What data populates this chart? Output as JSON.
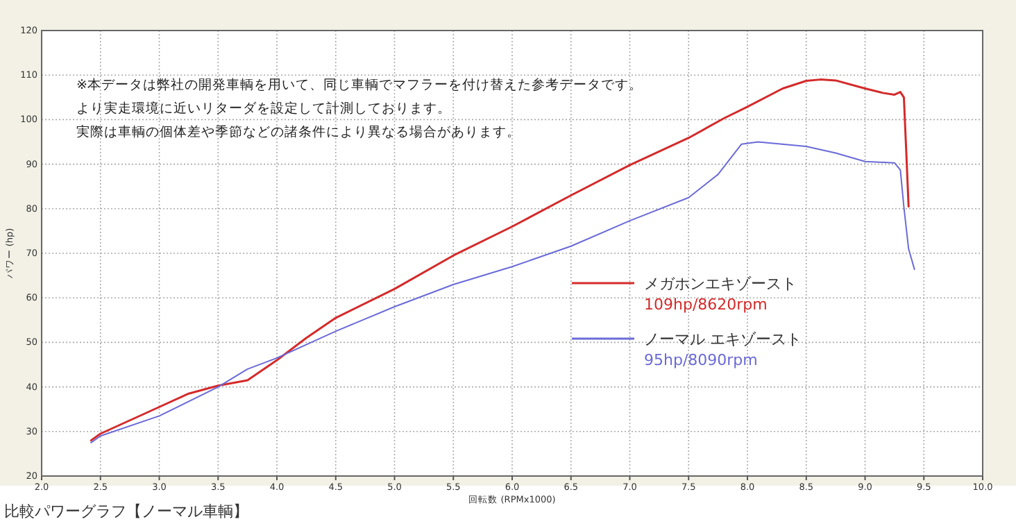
{
  "chart_data": {
    "type": "line",
    "xlabel": "回転数 (RPMx1000)",
    "ylabel": "パワー (hp)",
    "annotations": [
      "※本データは弊社の開発車輌を用いて、同じ車輌でマフラーを付け替えた参考データです。",
      "より実走環境に近いリターダを設定して計測しております。",
      "実際は車輌の個体差や季節などの諸条件により異なる場合があります。",
      "109hp/8620rpm",
      "95hp/8090rpm",
      "比較パワーグラフ【ノーマル車輌】"
    ],
    "series": [
      {
        "name": "メガホンエキゾースト",
        "color": "#d42a2a",
        "x": [
          2.42,
          2.5,
          3.0,
          3.25,
          3.5,
          3.75,
          4.0,
          4.25,
          4.5,
          5.0,
          5.5,
          6.0,
          6.5,
          7.0,
          7.5,
          7.8,
          8.0,
          8.3,
          8.5,
          8.62,
          8.75,
          9.0,
          9.15,
          9.25,
          9.3,
          9.33,
          9.35,
          9.37
        ],
        "values": [
          28.0,
          29.5,
          35.5,
          38.5,
          40.3,
          41.5,
          46,
          51,
          55.5,
          62,
          69.5,
          76,
          83,
          89.8,
          95.9,
          100.3,
          102.9,
          107,
          108.7,
          109,
          108.8,
          107,
          106,
          105.6,
          106.2,
          105,
          93,
          80.5
        ]
      },
      {
        "name": "ノーマル エキゾースト",
        "color": "#6a6ad8",
        "x": [
          2.42,
          2.5,
          3.0,
          3.5,
          3.75,
          4.0,
          4.25,
          4.5,
          5.0,
          5.5,
          6.0,
          6.5,
          7.0,
          7.5,
          7.75,
          7.95,
          8.09,
          8.5,
          8.75,
          9.0,
          9.25,
          9.3,
          9.33,
          9.37,
          9.42
        ],
        "values": [
          27.5,
          29,
          33.5,
          40,
          44,
          46.5,
          49.5,
          52.5,
          58,
          63,
          67,
          71.6,
          77.3,
          82.5,
          87.7,
          94.5,
          95,
          94,
          92.5,
          90.6,
          90.3,
          88.7,
          80.4,
          71,
          66.4
        ]
      }
    ],
    "xlim": [
      2,
      10
    ],
    "ylim": [
      20,
      120
    ],
    "xticks": [
      {
        "value": 2,
        "label": "2.0"
      },
      {
        "value": 2.5,
        "label": "2.5"
      },
      {
        "value": 3,
        "label": "3.0"
      },
      {
        "value": 3.5,
        "label": "3.5"
      },
      {
        "value": 4,
        "label": "4.0"
      },
      {
        "value": 4.5,
        "label": "4.5"
      },
      {
        "value": 5,
        "label": "5.0"
      },
      {
        "value": 5.5,
        "label": "5.5"
      },
      {
        "value": 6,
        "label": "6.0"
      },
      {
        "value": 6.5,
        "label": "6.5"
      },
      {
        "value": 7,
        "label": "7.0"
      },
      {
        "value": 7.5,
        "label": "7.5"
      },
      {
        "value": 8,
        "label": "8.0"
      },
      {
        "value": 8.5,
        "label": "8.5"
      },
      {
        "value": 9,
        "label": "9.0"
      },
      {
        "value": 9.5,
        "label": "9.5"
      },
      {
        "value": 10,
        "label": "10.0"
      }
    ],
    "yticks": [
      20,
      30,
      40,
      50,
      60,
      70,
      80,
      90,
      100,
      110,
      120
    ],
    "grid": true,
    "legend": "right",
    "marker": "none",
    "line_style": "solid"
  }
}
